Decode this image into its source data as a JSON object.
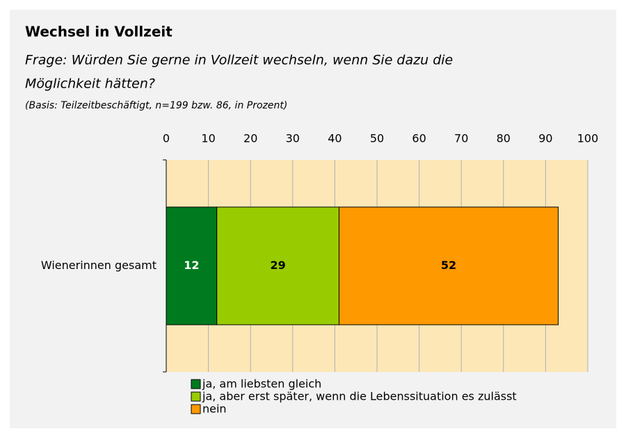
{
  "chart_data": {
    "type": "stacked_barh",
    "title": "Wechsel in Vollzeit",
    "subtitle": [
      "Frage: Würden Sie gerne in Vollzeit wechseln, wenn Sie dazu die",
      "Möglichkeit hätten?"
    ],
    "note": "(Basis: Teilzeitbeschäftigt,  n=199 bzw. 86, in Prozent)",
    "categories": [
      "Wienerinnen gesamt"
    ],
    "series": [
      {
        "name": "ja, am liebsten gleich",
        "color": "#007a1e",
        "values": [
          12
        ]
      },
      {
        "name": "ja, aber erst später, wenn die Lebenssituation es zulässt",
        "color": "#99cc00",
        "values": [
          29
        ]
      },
      {
        "name": "nein",
        "color": "#ff9900",
        "values": [
          52
        ]
      }
    ],
    "xlim": [
      0,
      100
    ],
    "xticks": [
      0,
      10,
      20,
      30,
      40,
      50,
      60,
      70,
      80,
      90,
      100
    ],
    "grid": true,
    "plot_background": "#fde7b7",
    "legend": "bottom"
  }
}
